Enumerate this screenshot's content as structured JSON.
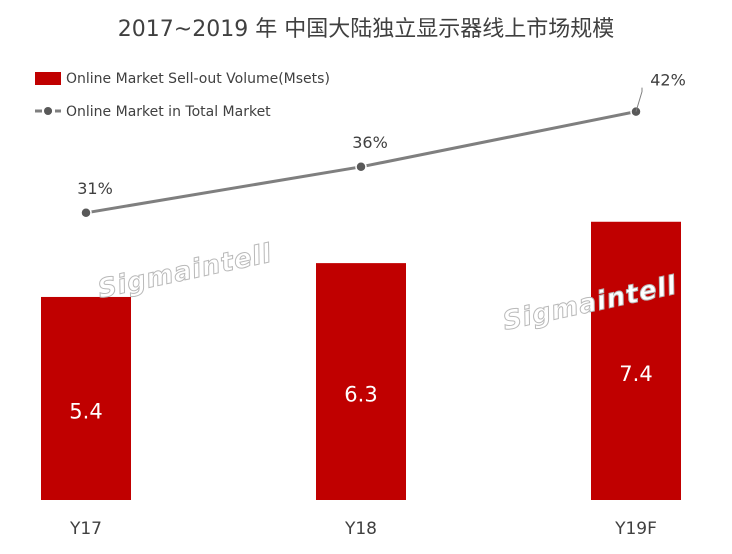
{
  "chart_data": {
    "type": "bar",
    "title": "2017~2019 年 中国大陆独立显示器线上市场规模",
    "categories": [
      "Y17",
      "Y18",
      "Y19F"
    ],
    "series": [
      {
        "name": "Online Market Sell-out Volume(Msets)",
        "type": "bar",
        "values": [
          5.4,
          6.3,
          7.4
        ],
        "labels": [
          "5.4",
          "6.3",
          "7.4"
        ]
      },
      {
        "name": "Online Market in Total Market",
        "type": "line",
        "values": [
          31,
          36,
          42
        ],
        "labels": [
          "31%",
          "36%",
          "42%"
        ]
      }
    ],
    "legend_position": "top-left",
    "grid": false,
    "colors": {
      "bar": "#c00000",
      "line": "#7f7f7f",
      "text": "#404040"
    }
  },
  "watermark": "Sigmaintell"
}
